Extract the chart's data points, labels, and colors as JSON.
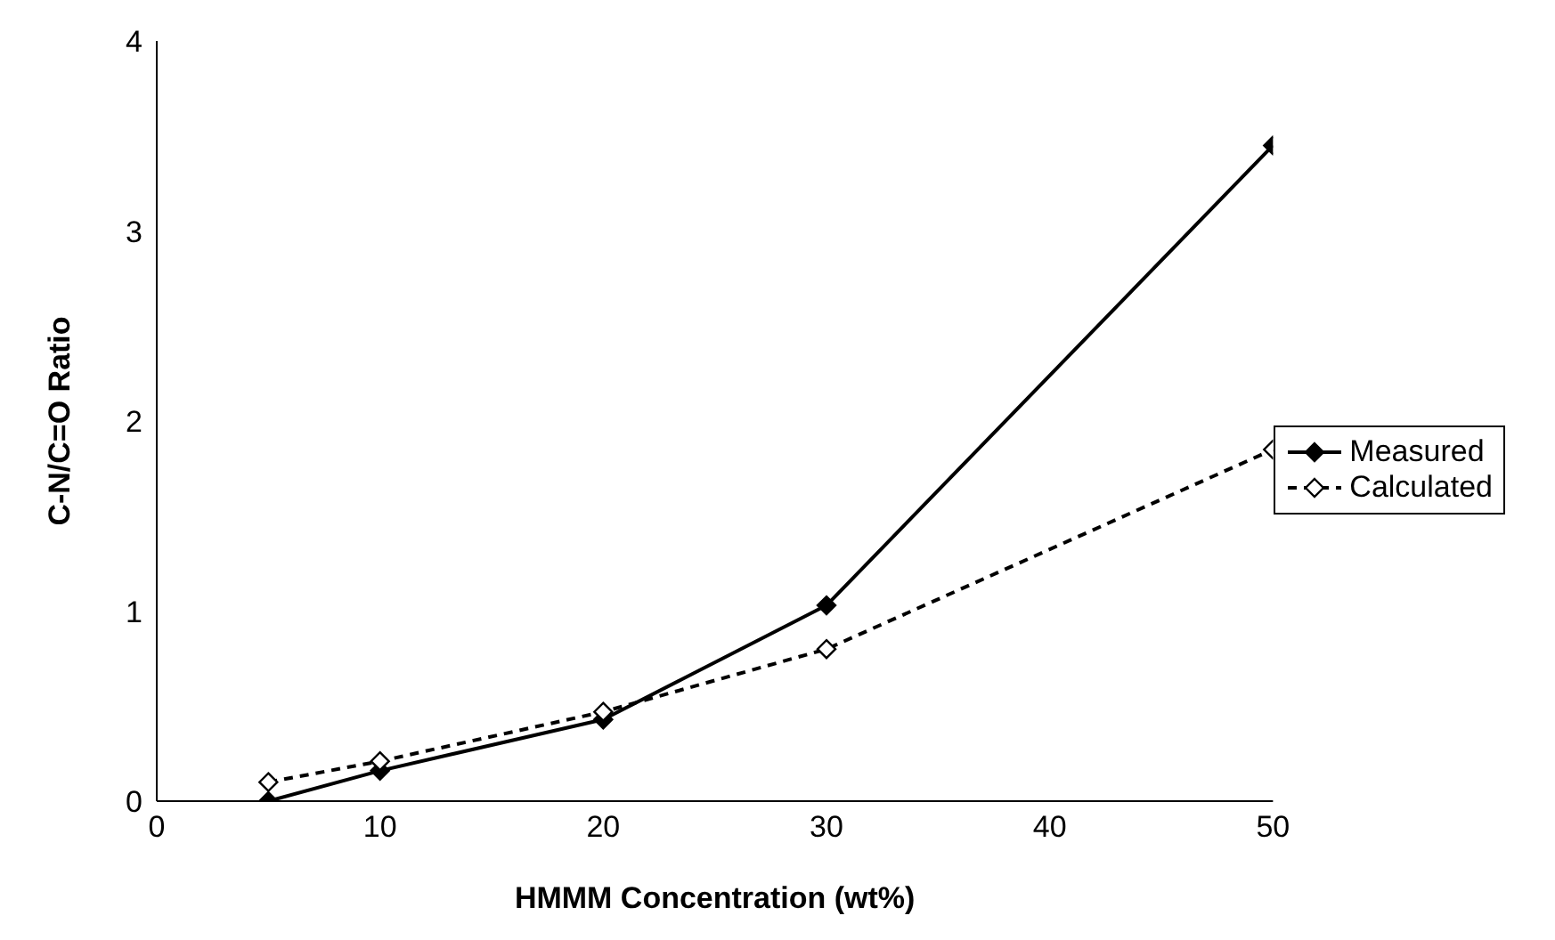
{
  "chart_data": {
    "type": "line",
    "xlabel": "HMMM Concentration (wt%)",
    "ylabel": "C-N/C=O Ratio",
    "xlim": [
      0,
      50
    ],
    "xticks": [
      0,
      10,
      20,
      30,
      40,
      50
    ],
    "ylim": [
      0,
      4
    ],
    "yticks": [
      0,
      1,
      2,
      3,
      4
    ],
    "grid": false,
    "legend": "right",
    "series": [
      {
        "name": "Measured",
        "color": "#000000",
        "x": [
          5,
          10,
          20,
          30,
          50
        ],
        "values": [
          0,
          0.16,
          0.43,
          1.03,
          3.45
        ],
        "marker": "diamond",
        "line_style": "solid"
      },
      {
        "name": "Calculated",
        "color": "#000000",
        "x": [
          5,
          10,
          20,
          30,
          50
        ],
        "values": [
          0.1,
          0.21,
          0.47,
          0.8,
          1.85
        ],
        "marker": "diamond",
        "line_style": "dashed"
      }
    ]
  }
}
